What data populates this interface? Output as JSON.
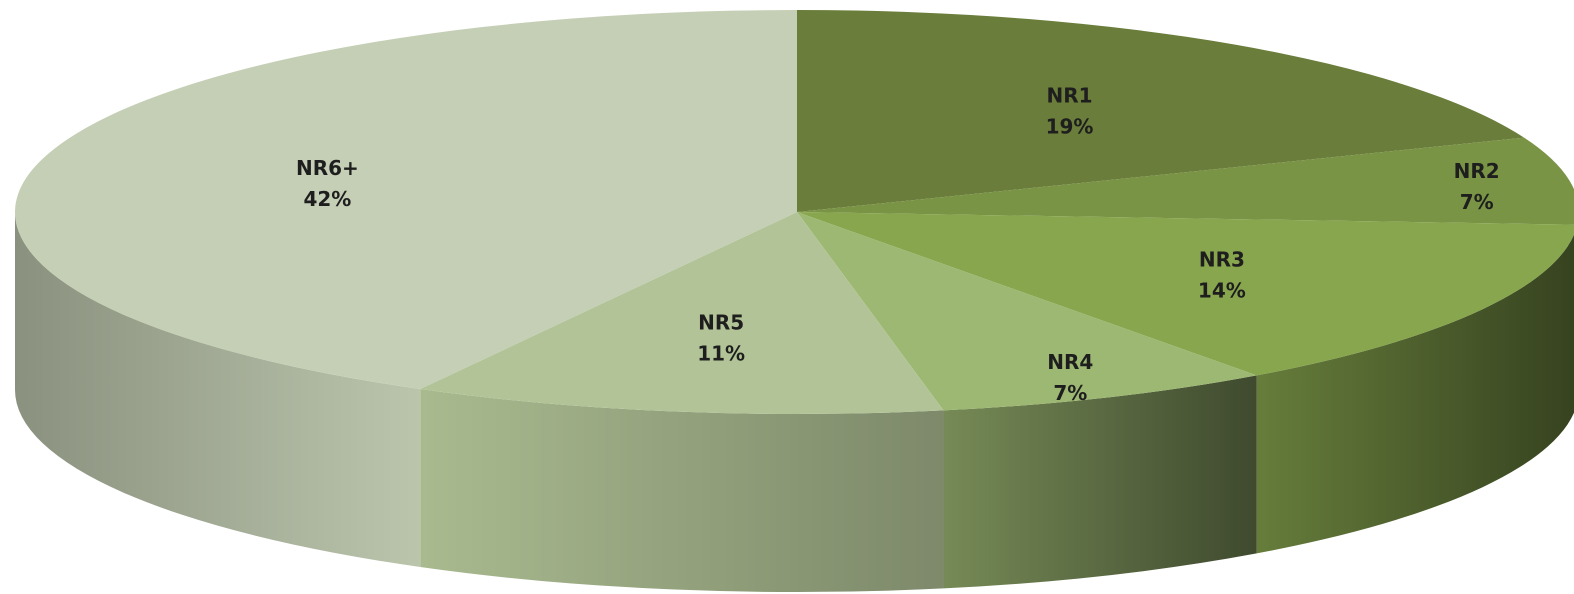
{
  "chart_data": {
    "type": "pie3d",
    "categories": [
      "NR1",
      "NR2",
      "NR3",
      "NR4",
      "NR5",
      "NR6+"
    ],
    "values": [
      19,
      7,
      14,
      7,
      11,
      42
    ],
    "value_labels": [
      "19%",
      "7%",
      "14%",
      "7%",
      "11%",
      "42%"
    ],
    "colors": [
      "#6a7d3a",
      "#7a9446",
      "#88a64e",
      "#9db872",
      "#b2c497",
      "#c5cfb5"
    ]
  }
}
